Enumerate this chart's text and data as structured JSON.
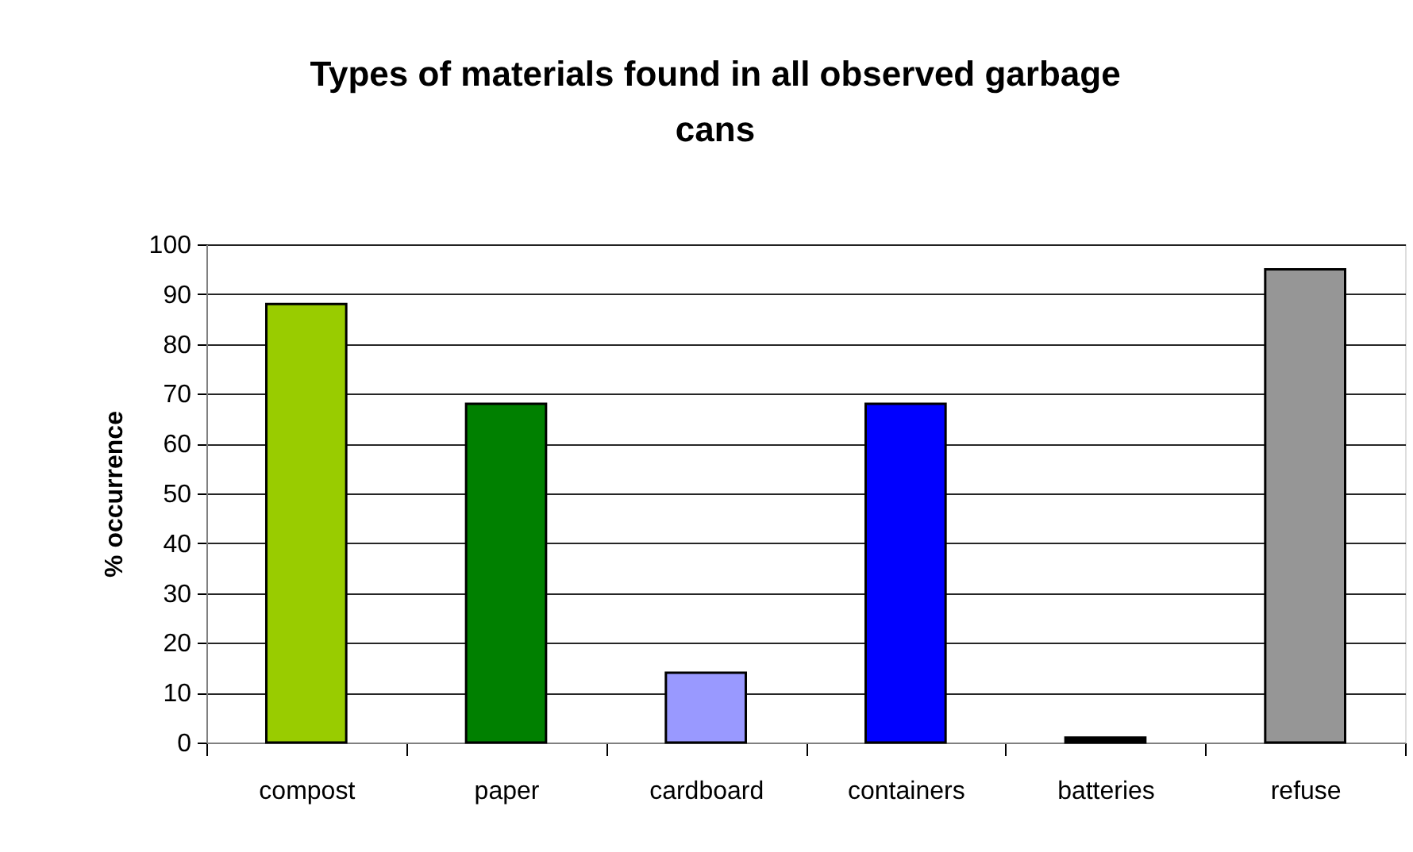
{
  "chart_data": {
    "type": "bar",
    "title": "Types of materials found in all observed garbage cans",
    "ylabel": "% occurrence",
    "categories": [
      "compost",
      "paper",
      "cardboard",
      "containers",
      "batteries",
      "refuse"
    ],
    "values": [
      88,
      68,
      14,
      68,
      1,
      95
    ],
    "colors": [
      "#99cc00",
      "#008000",
      "#9999ff",
      "#0000ff",
      "#000000",
      "#969696"
    ],
    "ylim": [
      0,
      100
    ],
    "yticks": [
      0,
      10,
      20,
      30,
      40,
      50,
      60,
      70,
      80,
      90,
      100
    ],
    "grid": "y"
  }
}
